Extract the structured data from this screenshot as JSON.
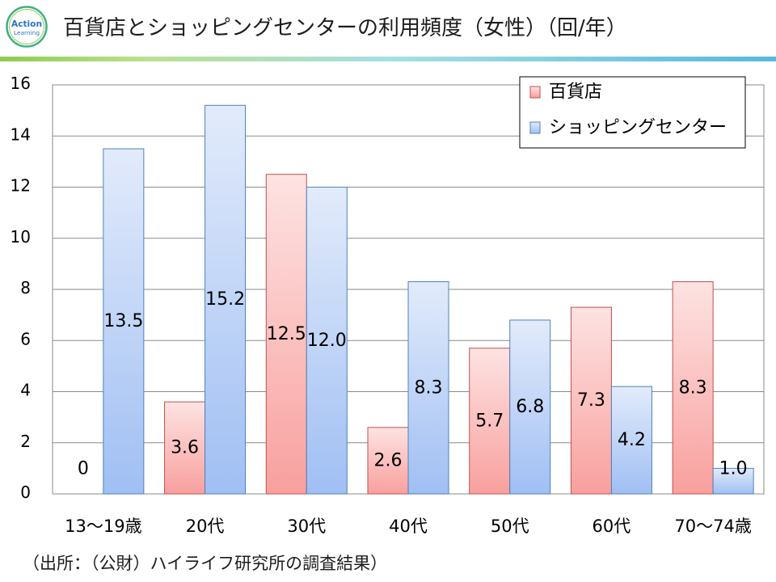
{
  "logo": {
    "line1": "Action",
    "line2": "Learning"
  },
  "footer": {
    "source": "（出所：（公財）ハイライフ研究所の調査結果）"
  },
  "chart_data": {
    "type": "bar",
    "title": "百貨店とショッピングセンターの利用頻度（女性）（回/年）",
    "xlabel": "",
    "ylabel": "",
    "categories": [
      "13〜19歳",
      "20代",
      "30代",
      "40代",
      "50代",
      "60代",
      "70〜74歳"
    ],
    "series": [
      {
        "name": "百貨店",
        "values": [
          0,
          3.6,
          12.5,
          2.6,
          5.7,
          7.3,
          8.3
        ],
        "color": "#c0504d",
        "fill_top": "#fde3e2",
        "fill_bottom": "#f8a09e"
      },
      {
        "name": "ショッピングセンター",
        "values": [
          13.5,
          15.2,
          12.0,
          8.3,
          6.8,
          4.2,
          1.0
        ],
        "color": "#4f81bd",
        "fill_top": "#e2ebfb",
        "fill_bottom": "#a0bff3"
      }
    ],
    "ylim": [
      0,
      16
    ],
    "ytick_step": 2,
    "grid": true,
    "legend": "top-right",
    "data_labels": true
  }
}
